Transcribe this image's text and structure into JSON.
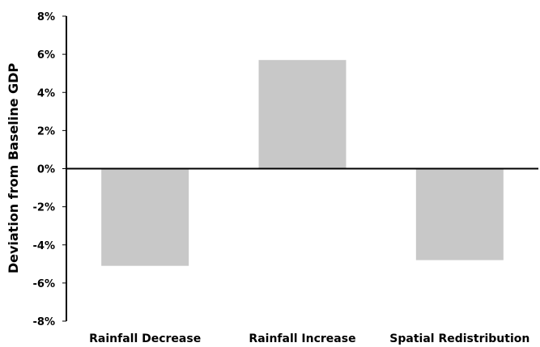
{
  "chart_data": {
    "type": "bar",
    "title": "",
    "xlabel": "",
    "ylabel": "Deviation from Baseline GDP",
    "categories": [
      "Rainfall Decrease",
      "Rainfall Increase",
      "Spatial Redistribution"
    ],
    "values": [
      -5.1,
      5.7,
      -4.8
    ],
    "value_unit": "%",
    "ylim": [
      -8,
      8
    ],
    "yticks": [
      -8,
      -6,
      -4,
      -2,
      0,
      2,
      4,
      6,
      8
    ],
    "ytick_labels": [
      "-8%",
      "-6%",
      "-4%",
      "-2%",
      "0%",
      "2%",
      "4%",
      "6%",
      "8%"
    ],
    "grid": false,
    "legend": "none",
    "bar_color": "#c8c8c8",
    "axis_color": "#000000"
  }
}
